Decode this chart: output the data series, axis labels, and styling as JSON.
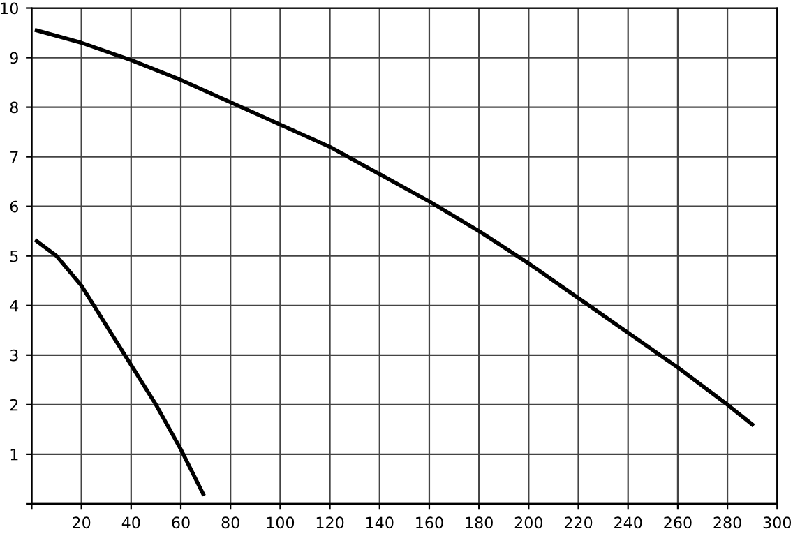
{
  "chart_data": {
    "type": "line",
    "xlim": [
      0,
      300
    ],
    "ylim": [
      0,
      10
    ],
    "xticks": [
      {
        "value": 0,
        "label": null
      },
      20,
      40,
      60,
      80,
      100,
      120,
      140,
      160,
      180,
      200,
      220,
      240,
      260,
      280,
      300
    ],
    "yticks": [
      {
        "value": 0,
        "label": null
      },
      1,
      2,
      3,
      4,
      5,
      6,
      7,
      8,
      9,
      10
    ],
    "grid": true,
    "marker": "none",
    "line_style": "solid",
    "series": [
      {
        "color": "#000000",
        "x": [
          2,
          20,
          40,
          60,
          80,
          100,
          120,
          140,
          160,
          180,
          200,
          220,
          240,
          260,
          280,
          290
        ],
        "values": [
          9.55,
          9.3,
          8.95,
          8.55,
          8.1,
          7.65,
          7.2,
          6.65,
          6.1,
          5.5,
          4.85,
          4.15,
          3.45,
          2.75,
          2.0,
          1.6
        ]
      },
      {
        "color": "#000000",
        "x": [
          2,
          10,
          20,
          30,
          40,
          50,
          60,
          69
        ],
        "values": [
          5.3,
          5.0,
          4.4,
          3.6,
          2.8,
          2.0,
          1.1,
          0.2
        ]
      }
    ]
  }
}
